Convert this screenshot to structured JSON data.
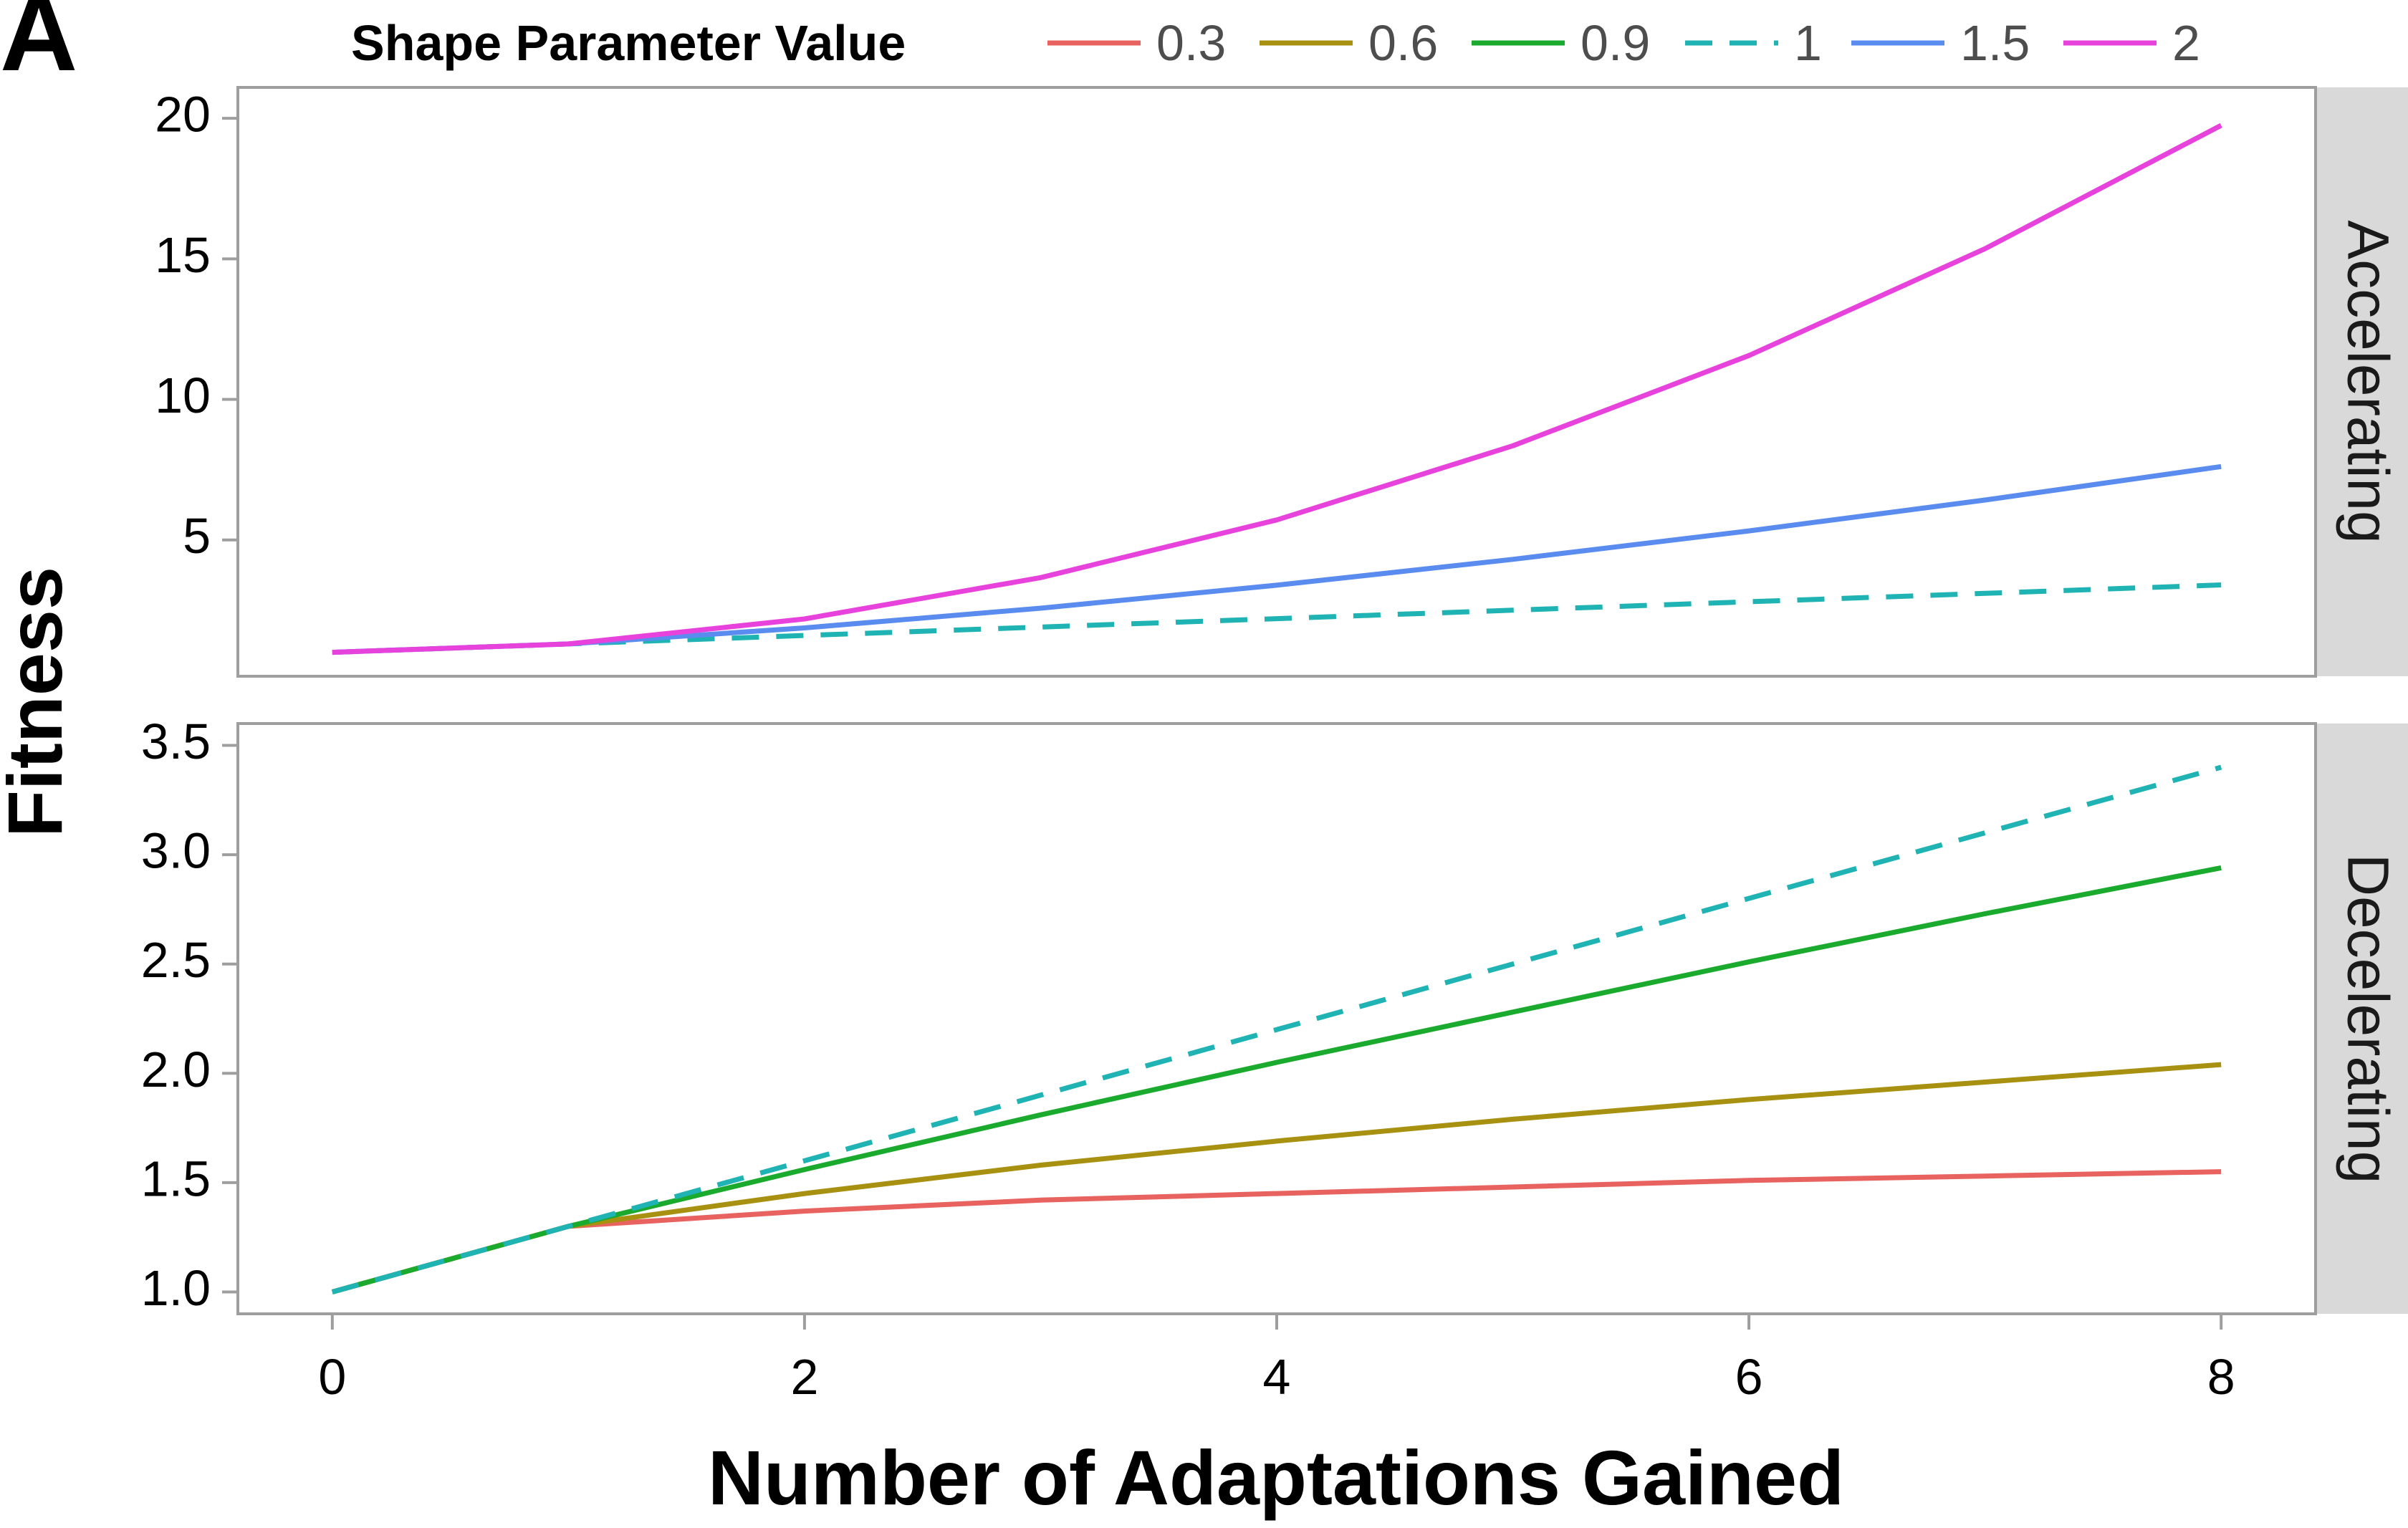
{
  "figure_label": "A",
  "legend": {
    "title": "Shape Parameter Value",
    "entries": [
      {
        "label": "0.3",
        "color": "#E8635F",
        "dashed": false
      },
      {
        "label": "0.6",
        "color": "#A89110",
        "dashed": false
      },
      {
        "label": "0.9",
        "color": "#1AAA2E",
        "dashed": false
      },
      {
        "label": "1",
        "color": "#1FB3B3",
        "dashed": true
      },
      {
        "label": "1.5",
        "color": "#5A8CEF",
        "dashed": false
      },
      {
        "label": "2",
        "color": "#E842DD",
        "dashed": false
      }
    ]
  },
  "xlabel": "Number of Adaptations Gained",
  "ylabel": "Fitness",
  "chart_data": [
    {
      "type": "line",
      "facet": "Accelerating",
      "x": [
        0,
        1,
        2,
        3,
        4,
        5,
        6,
        7,
        8
      ],
      "xlim": [
        -0.4,
        8.4
      ],
      "xticks": [
        0,
        2,
        4,
        6,
        8
      ],
      "ylim": [
        0.15,
        21.1
      ],
      "yticks": [
        5,
        10,
        15,
        20
      ],
      "series": [
        {
          "name": "1",
          "color": "#1FB3B3",
          "dashed": true,
          "values": [
            1.0,
            1.3,
            1.6,
            1.9,
            2.2,
            2.5,
            2.8,
            3.1,
            3.4
          ]
        },
        {
          "name": "1.5",
          "color": "#5A8CEF",
          "dashed": false,
          "values": [
            1.0,
            1.3,
            1.87,
            2.57,
            3.39,
            4.31,
            5.32,
            6.42,
            7.61
          ]
        },
        {
          "name": "2",
          "color": "#E842DD",
          "dashed": false,
          "values": [
            1.0,
            1.3,
            2.19,
            3.66,
            5.71,
            8.35,
            11.56,
            15.36,
            19.75
          ]
        }
      ]
    },
    {
      "type": "line",
      "facet": "Decelerating",
      "x": [
        0,
        1,
        2,
        3,
        4,
        5,
        6,
        7,
        8
      ],
      "xlim": [
        -0.4,
        8.4
      ],
      "xticks": [
        0,
        2,
        4,
        6,
        8
      ],
      "ylim": [
        0.9,
        3.6
      ],
      "yticks": [
        1.0,
        1.5,
        2.0,
        2.5,
        3.0,
        3.5
      ],
      "ytick_labels": [
        "1.0",
        "1.5",
        "2.0",
        "2.5",
        "3.0",
        "3.5"
      ],
      "series": [
        {
          "name": "0.3",
          "color": "#E8635F",
          "dashed": false,
          "values": [
            1.0,
            1.3,
            1.37,
            1.42,
            1.45,
            1.48,
            1.51,
            1.53,
            1.55
          ]
        },
        {
          "name": "0.6",
          "color": "#A89110",
          "dashed": false,
          "values": [
            1.0,
            1.3,
            1.45,
            1.58,
            1.69,
            1.79,
            1.88,
            1.96,
            2.04
          ]
        },
        {
          "name": "0.9",
          "color": "#1AAA2E",
          "dashed": false,
          "values": [
            1.0,
            1.3,
            1.56,
            1.81,
            2.05,
            2.28,
            2.51,
            2.73,
            2.94
          ]
        },
        {
          "name": "1",
          "color": "#1FB3B3",
          "dashed": true,
          "values": [
            1.0,
            1.3,
            1.6,
            1.9,
            2.2,
            2.5,
            2.8,
            3.1,
            3.4
          ]
        }
      ]
    }
  ]
}
